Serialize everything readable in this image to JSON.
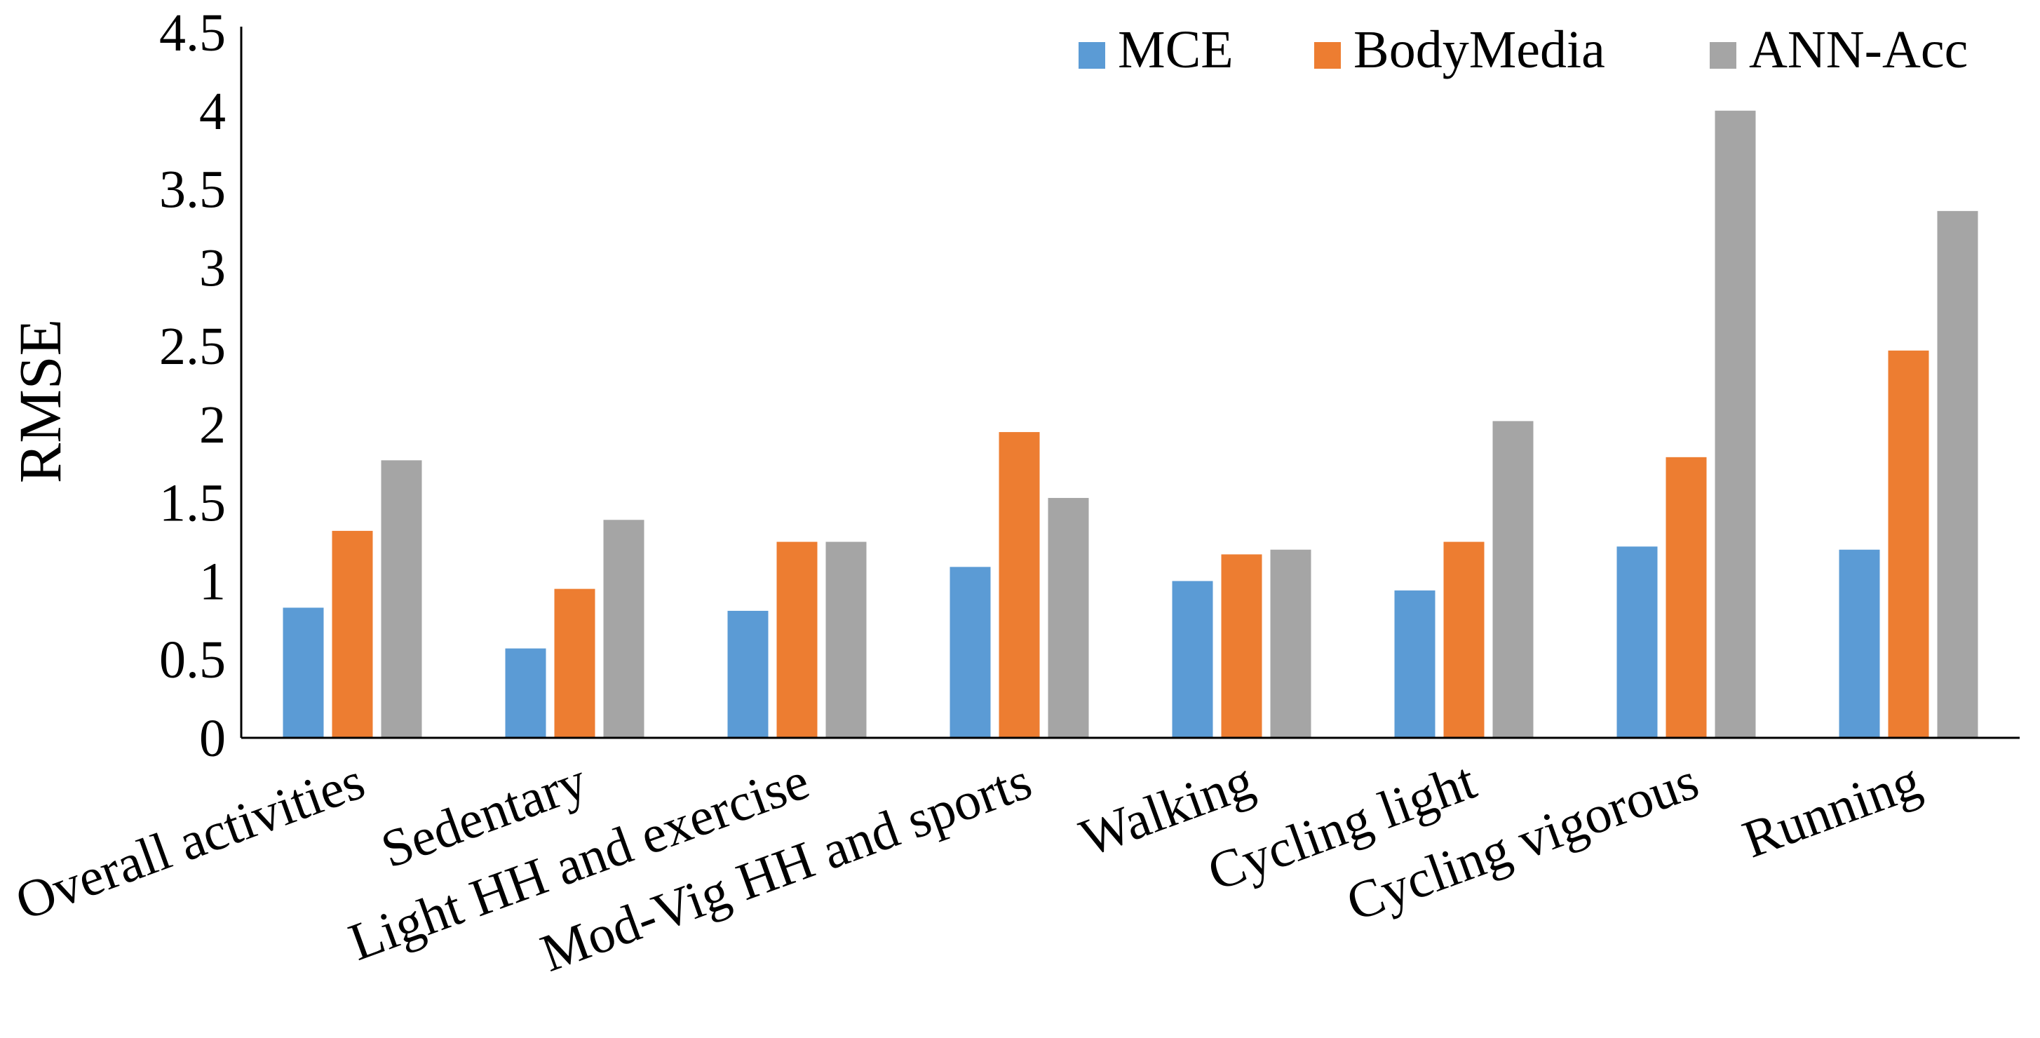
{
  "chart_data": {
    "type": "bar",
    "title": "",
    "xlabel": "",
    "ylabel": "RMSE",
    "ylim": [
      0,
      4.5
    ],
    "yticks": [
      "0",
      "0.5",
      "1",
      "1.5",
      "2",
      "2.5",
      "3",
      "3.5",
      "4",
      "4.5"
    ],
    "grid": false,
    "legend_position": "top-right",
    "categories": [
      "Overall activities",
      "Sedentary",
      "Light HH and exercise",
      "Mod-Vig HH and sports",
      "Walking",
      "Cycling light",
      "Cycling vigorous",
      "Running"
    ],
    "series": [
      {
        "name": "MCE",
        "color": "#5b9bd5",
        "values": [
          0.83,
          0.57,
          0.81,
          1.09,
          1.0,
          0.94,
          1.22,
          1.2
        ]
      },
      {
        "name": "BodyMedia",
        "color": "#ed7d31",
        "values": [
          1.32,
          0.95,
          1.25,
          1.95,
          1.17,
          1.25,
          1.79,
          2.47
        ]
      },
      {
        "name": "ANN-Acc",
        "color": "#a5a5a5",
        "values": [
          1.77,
          1.39,
          1.25,
          1.53,
          1.2,
          2.02,
          4.0,
          3.36
        ]
      }
    ]
  }
}
